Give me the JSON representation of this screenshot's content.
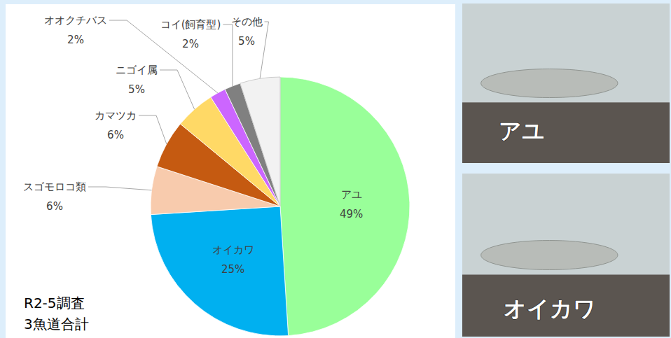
{
  "chart_data": {
    "type": "pie",
    "categories": [
      "アユ",
      "オイカワ",
      "スゴモロコ類",
      "カマツカ",
      "ニゴイ属",
      "オオクチバス",
      "コイ(飼育型)",
      "その他"
    ],
    "values": [
      49,
      25,
      6,
      6,
      5,
      2,
      2,
      5
    ],
    "value_labels": [
      "49%",
      "25%",
      "6%",
      "6%",
      "5%",
      "2%",
      "2%",
      "5%"
    ],
    "colors": [
      "#99ff99",
      "#00b0f0",
      "#f8cbad",
      "#c55a11",
      "#ffd966",
      "#cc66ff",
      "#808080",
      "#f2f2f2"
    ],
    "data_labels": true,
    "annotations": [
      "R2-5調査",
      "3魚道合計"
    ]
  },
  "photos": [
    {
      "label": "アユ"
    },
    {
      "label": "オイカワ"
    }
  ]
}
